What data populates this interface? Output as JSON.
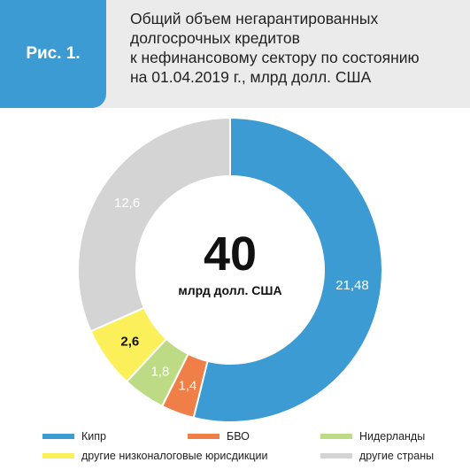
{
  "header": {
    "figure_label": "Рис. 1.",
    "title": "Общий объем негарантированных\nдолгосрочных кредитов\nк нефинансовому сектору по состоянию\nна 01.04.2019 г., млрд долл. США"
  },
  "center": {
    "total_value": "40",
    "total_unit": "млрд долл. США"
  },
  "chart_data": {
    "type": "pie",
    "title": "Общий объем негарантированных долгосрочных кредитов к нефинансовому сектору по состоянию на 01.04.2019 г., млрд долл. США",
    "total": 40,
    "unit": "млрд долл. США",
    "categories": [
      "Кипр",
      "БВО",
      "Нидерланды",
      "другие низконалоговые юрисдикции",
      "другие страны"
    ],
    "values": [
      21.48,
      1.4,
      1.8,
      2.6,
      12.6
    ],
    "value_labels": [
      "21,48",
      "1,4",
      "1,8",
      "2,6",
      "12,6"
    ],
    "colors": [
      "#3d9bd3",
      "#f07f47",
      "#bcdb84",
      "#fbf05a",
      "#d4d4d4"
    ],
    "legend": "bottom"
  }
}
